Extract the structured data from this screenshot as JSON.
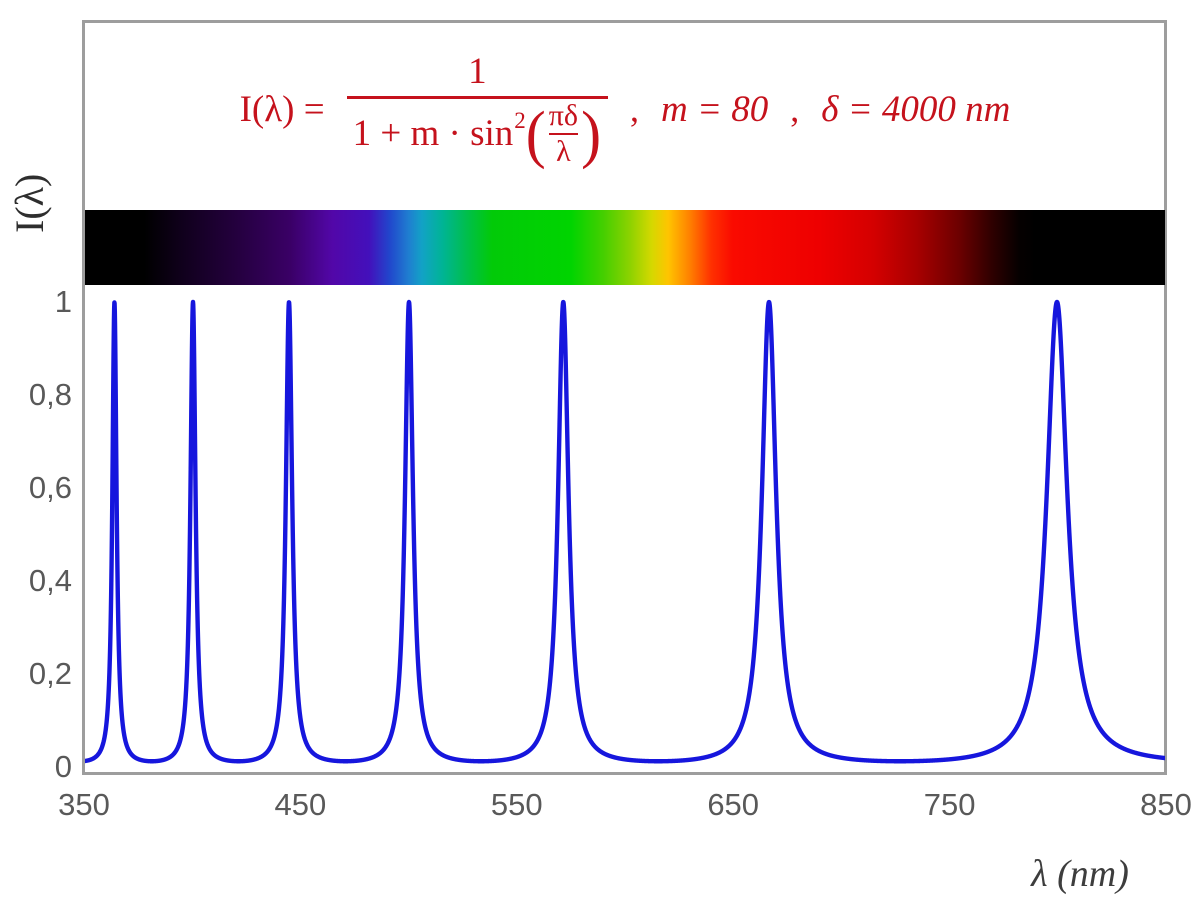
{
  "colors": {
    "formula_red": "#c5121c",
    "curve_blue": "#1616dd",
    "tick_label_gray": "#595959",
    "axis_title_gray": "#3d3d3d",
    "border_gray": "#9d9d9d"
  },
  "formula": {
    "lhs": "I(λ) =",
    "numerator": "1",
    "denominator_prefix": "1 + m · sin",
    "exponent": "2",
    "open_paren": "(",
    "inner_numerator": "πδ",
    "inner_denominator": "λ",
    "close_paren": ")",
    "separator1": ",",
    "param_m": "m = 80",
    "separator2": ",",
    "param_delta": "δ = 4000 nm"
  },
  "chart_data": {
    "type": "line",
    "title": "I(λ) = 1 / (1 + m·sin²(πδ/λ)) ,  m = 80 ,  δ = 4000 nm",
    "xlabel": "λ  (nm)",
    "ylabel": "I(λ)",
    "xlim": [
      350,
      850
    ],
    "ylim": [
      0,
      1
    ],
    "x_ticks": [
      350,
      450,
      550,
      650,
      750,
      850
    ],
    "x_tick_labels": [
      "350",
      "450",
      "550",
      "650",
      "750",
      "850"
    ],
    "y_ticks": [
      0,
      0.2,
      0.4,
      0.6,
      0.8,
      1
    ],
    "y_tick_labels": [
      "0",
      "0,2",
      "0,4",
      "0,6",
      "0,8",
      "1"
    ],
    "function": "I(lambda) = 1 / (1 + m * sin^2(pi * delta / lambda))",
    "params": {
      "m": 80,
      "delta_nm": 4000
    },
    "sample_step_nm": 0.1,
    "peaks_nm": [
      363.64,
      400,
      444.44,
      500,
      571.43,
      666.67,
      800
    ],
    "peak_value": 1,
    "min_value": 0.0123,
    "grid": false,
    "legend": null,
    "line_color": "#1616dd",
    "spectrum_bar_stops": [
      [
        "0%",
        "#000000"
      ],
      [
        "5.5%",
        "#000000"
      ],
      [
        "9%",
        "#10001c"
      ],
      [
        "14%",
        "#24003e"
      ],
      [
        "19%",
        "#3a0066"
      ],
      [
        "22.9%",
        "#5207a8"
      ],
      [
        "26.3%",
        "#4310bb"
      ],
      [
        "28.2%",
        "#2146cc"
      ],
      [
        "30%",
        "#1f7fd0"
      ],
      [
        "31.2%",
        "#12a2c6"
      ],
      [
        "33.1%",
        "#00b495"
      ],
      [
        "35.4%",
        "#00bf4a"
      ],
      [
        "37.7%",
        "#02ca08"
      ],
      [
        "45%",
        "#00d400"
      ],
      [
        "48%",
        "#45cf00"
      ],
      [
        "50.5%",
        "#8ed200"
      ],
      [
        "52.5%",
        "#d6d800"
      ],
      [
        "54%",
        "#ffc400"
      ],
      [
        "56%",
        "#ff8000"
      ],
      [
        "58%",
        "#ff3000"
      ],
      [
        "60%",
        "#fa0a00"
      ],
      [
        "68%",
        "#ee0000"
      ],
      [
        "73%",
        "#d40000"
      ],
      [
        "77%",
        "#a80000"
      ],
      [
        "81%",
        "#6b0000"
      ],
      [
        "84%",
        "#2e0000"
      ],
      [
        "86.5%",
        "#050000"
      ],
      [
        "88%",
        "#000000"
      ],
      [
        "100%",
        "#000000"
      ]
    ]
  }
}
